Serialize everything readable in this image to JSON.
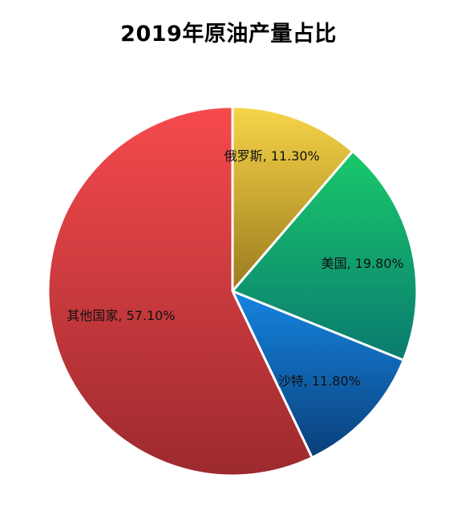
{
  "chart_data": {
    "type": "pie",
    "title": "2019年原油产量占比",
    "start_angle_deg": 0,
    "direction": "clockwise",
    "slices": [
      {
        "name": "俄罗斯",
        "label": "俄罗斯, 11.30%",
        "value": 11.3,
        "color_light": "#f7d548",
        "color_dark": "#9a7a1e"
      },
      {
        "name": "美国",
        "label": "美国, 19.80%",
        "value": 19.8,
        "color_light": "#19c96a",
        "color_dark": "#0a7a70"
      },
      {
        "name": "沙特",
        "label": "沙特, 11.80%",
        "value": 11.8,
        "color_light": "#1584e0",
        "color_dark": "#0a3f7a"
      },
      {
        "name": "其他国家",
        "label": "其他国家, 57.10%",
        "value": 57.1,
        "color_light": "#f64a4d",
        "color_dark": "#9c2a2e"
      }
    ],
    "legend": "none",
    "border_color": "#ffffff"
  }
}
